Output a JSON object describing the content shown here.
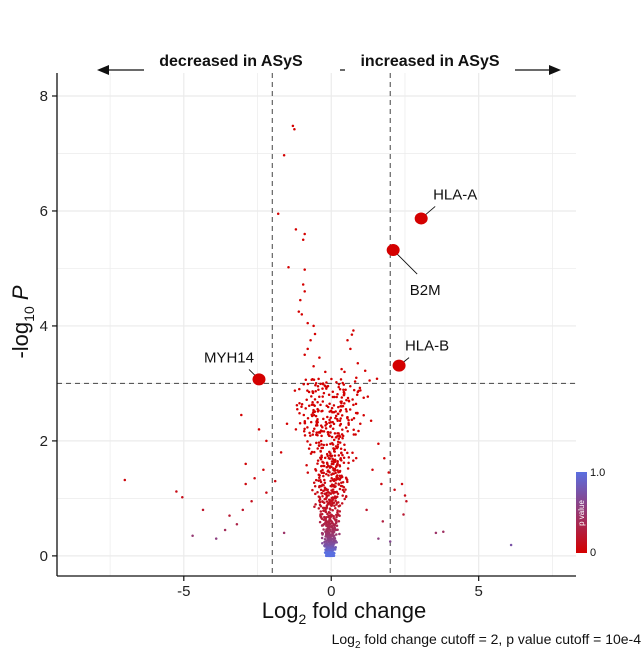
{
  "chart_data": {
    "type": "scatter",
    "title": "",
    "direction_labels": {
      "left": "decreased in ASyS",
      "right": "increased in ASyS"
    },
    "xlabel": {
      "prefix": "Log",
      "sub": "2",
      "suffix": " fold change"
    },
    "ylabel": {
      "prefix": "-log",
      "sub": "10",
      "italic": " P"
    },
    "xlim": [
      -9.3,
      8.3
    ],
    "ylim": [
      -0.35,
      8.4
    ],
    "x_ticks": [
      -5,
      0,
      5
    ],
    "y_ticks": [
      0,
      2,
      4,
      6,
      8
    ],
    "fc_cutoff": 2,
    "p_cutoff_log10": 3,
    "caption": {
      "prefix": "Log",
      "sub": "2",
      "suffix": " fold change cutoff = 2, p value cutoff = 10e-4"
    },
    "colorbar": {
      "title": "p value",
      "max_label": "1.0",
      "min_label": "0",
      "low_color": "#d40000",
      "high_color": "#5a6fe0"
    },
    "highlighted": [
      {
        "gene": "HLA-A",
        "x": 3.05,
        "y": 5.87
      },
      {
        "gene": "B2M",
        "x": 2.1,
        "y": 5.32
      },
      {
        "gene": "HLA-B",
        "x": 2.3,
        "y": 3.31
      },
      {
        "gene": "MYH14",
        "x": -2.45,
        "y": 3.07
      }
    ],
    "points": [
      [
        -1.3,
        7.48
      ],
      [
        -1.25,
        7.42
      ],
      [
        -1.6,
        6.97
      ],
      [
        -1.8,
        5.95
      ],
      [
        -1.2,
        5.68
      ],
      [
        -0.95,
        5.5
      ],
      [
        -0.9,
        5.6
      ],
      [
        -1.45,
        5.02
      ],
      [
        -0.9,
        4.98
      ],
      [
        -0.95,
        4.72
      ],
      [
        -0.9,
        4.6
      ],
      [
        -1.05,
        4.45
      ],
      [
        -1.1,
        4.25
      ],
      [
        -1.0,
        4.2
      ],
      [
        -0.8,
        4.05
      ],
      [
        -0.6,
        4.0
      ],
      [
        -0.55,
        3.86
      ],
      [
        -0.7,
        3.75
      ],
      [
        -0.8,
        3.6
      ],
      [
        -0.9,
        3.5
      ],
      [
        -0.4,
        3.45
      ],
      [
        -0.6,
        3.3
      ],
      [
        -0.2,
        3.2
      ],
      [
        0.35,
        3.25
      ],
      [
        0.55,
        3.75
      ],
      [
        0.65,
        3.6
      ],
      [
        0.7,
        3.85
      ],
      [
        0.75,
        3.92
      ],
      [
        0.45,
        3.2
      ],
      [
        0.85,
        3.1
      ],
      [
        0.9,
        3.35
      ],
      [
        1.15,
        3.22
      ],
      [
        1.3,
        3.05
      ],
      [
        1.55,
        3.08
      ],
      [
        0.3,
        2.9
      ],
      [
        -0.45,
        2.95
      ],
      [
        0.6,
        2.7
      ],
      [
        0.5,
        2.55
      ],
      [
        0.9,
        2.85
      ],
      [
        1.1,
        2.75
      ],
      [
        -0.75,
        2.85
      ],
      [
        -1.15,
        2.55
      ],
      [
        -1.2,
        2.2
      ],
      [
        -1.5,
        2.3
      ],
      [
        -1.7,
        1.8
      ],
      [
        -2.45,
        2.2
      ],
      [
        -3.05,
        2.45
      ],
      [
        -2.3,
        1.5
      ],
      [
        -2.6,
        1.35
      ],
      [
        -2.9,
        1.25
      ],
      [
        -2.2,
        1.1
      ],
      [
        -2.7,
        0.95
      ],
      [
        -3.0,
        0.8
      ],
      [
        -3.2,
        0.55
      ],
      [
        -3.45,
        0.7
      ],
      [
        -2.9,
        1.6
      ],
      [
        -2.2,
        2.0
      ],
      [
        -1.9,
        1.3
      ],
      [
        1.35,
        2.35
      ],
      [
        1.6,
        1.95
      ],
      [
        1.8,
        1.7
      ],
      [
        1.95,
        1.45
      ],
      [
        2.15,
        1.15
      ],
      [
        1.7,
        1.25
      ],
      [
        1.4,
        1.5
      ],
      [
        2.5,
        1.05
      ],
      [
        2.55,
        0.95
      ],
      [
        2.45,
        0.72
      ],
      [
        1.75,
        0.6
      ],
      [
        1.2,
        0.8
      ],
      [
        -7.0,
        1.32
      ],
      [
        -5.25,
        1.12
      ],
      [
        -5.05,
        1.02
      ],
      [
        -4.7,
        0.35
      ],
      [
        2.4,
        1.25
      ],
      [
        3.55,
        0.4
      ],
      [
        3.8,
        0.42
      ],
      [
        6.1,
        0.19
      ],
      [
        -4.35,
        0.8
      ],
      [
        -3.9,
        0.3
      ],
      [
        -3.6,
        0.45
      ],
      [
        -1.6,
        0.4
      ],
      [
        1.6,
        0.3
      ],
      [
        2.0,
        0.25
      ]
    ]
  }
}
